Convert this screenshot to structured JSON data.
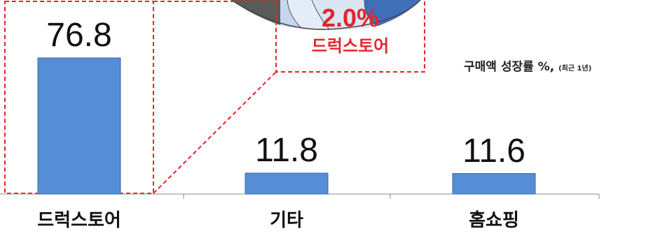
{
  "callout": {
    "share_value": "2.0%",
    "share_label": "드럭스토어"
  },
  "chart_data": {
    "type": "bar",
    "subtitle": "구매액 성장률 %,",
    "subtitle_note": "(최근 1년)",
    "categories": [
      "드럭스토어",
      "기타",
      "홈쇼핑"
    ],
    "values": [
      76.8,
      11.8,
      11.6
    ],
    "value_labels": [
      "76.8",
      "11.8",
      "11.6"
    ],
    "bar_color": "#558ed5",
    "highlight_color": "#e3262d",
    "pie_colors": [
      "#5a5a5a",
      "#c5d6ee",
      "#e4ecf7",
      "#dbe6f4",
      "#3f6fb8"
    ]
  }
}
